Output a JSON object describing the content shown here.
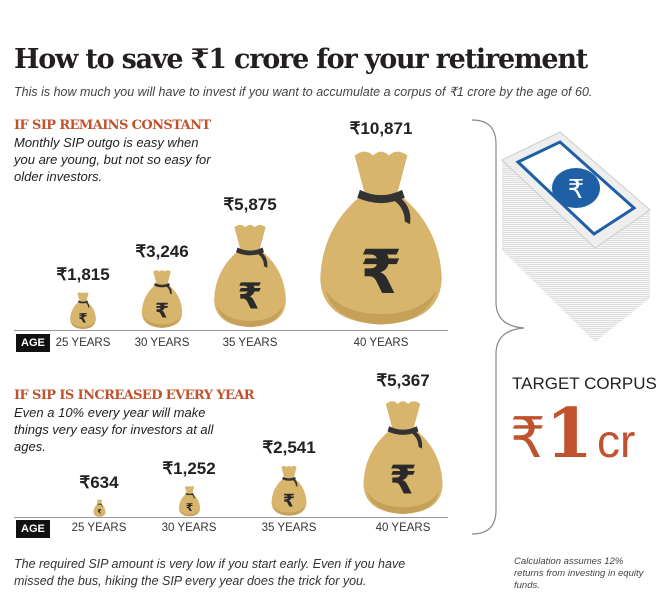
{
  "header": {
    "title": "How to save ₹1 crore for your retirement",
    "subtitle": "This is how much you will have to invest if you want to accumulate a corpus of ₹1 crore by the age of 60."
  },
  "constant": {
    "heading": "IF SIP REMAINS CONSTANT",
    "description": "Monthly SIP outgo is easy when you are young, but not so easy for older investors."
  },
  "increased": {
    "heading": "IF SIP IS INCREASED EVERY YEAR",
    "description": "Even a 10% every year will make things very easy for investors at all ages."
  },
  "age_label": "AGE",
  "target": {
    "label": "TARGET CORPUS",
    "symbol": "₹",
    "amount": "1",
    "unit": "cr"
  },
  "footer": "The required SIP amount is very low if you start early. Even if you have missed the bus, hiking the SIP every year does the trick for you.",
  "note": "Calculation assumes 12% returns from investing in equity funds.",
  "colors": {
    "accent": "#c0522d",
    "bag": "#d8b56c",
    "tie": "#333333",
    "note_blue": "#1f5fa6"
  },
  "chart_data": [
    {
      "type": "bar",
      "title": "IF SIP REMAINS CONSTANT",
      "categories": [
        "25 YEARS",
        "30 YEARS",
        "35 YEARS",
        "40 YEARS"
      ],
      "values": [
        1815,
        3246,
        5875,
        10871
      ],
      "labels": [
        "₹1,815",
        "₹3,246",
        "₹5,875",
        "₹10,871"
      ],
      "mark": "money-bag"
    },
    {
      "type": "bar",
      "title": "IF SIP IS INCREASED EVERY YEAR",
      "categories": [
        "25 YEARS",
        "30 YEARS",
        "35 YEARS",
        "40 YEARS"
      ],
      "values": [
        634,
        1252,
        2541,
        5367
      ],
      "labels": [
        "₹634",
        "₹1,252",
        "₹2,541",
        "₹5,367"
      ],
      "mark": "money-bag"
    }
  ]
}
